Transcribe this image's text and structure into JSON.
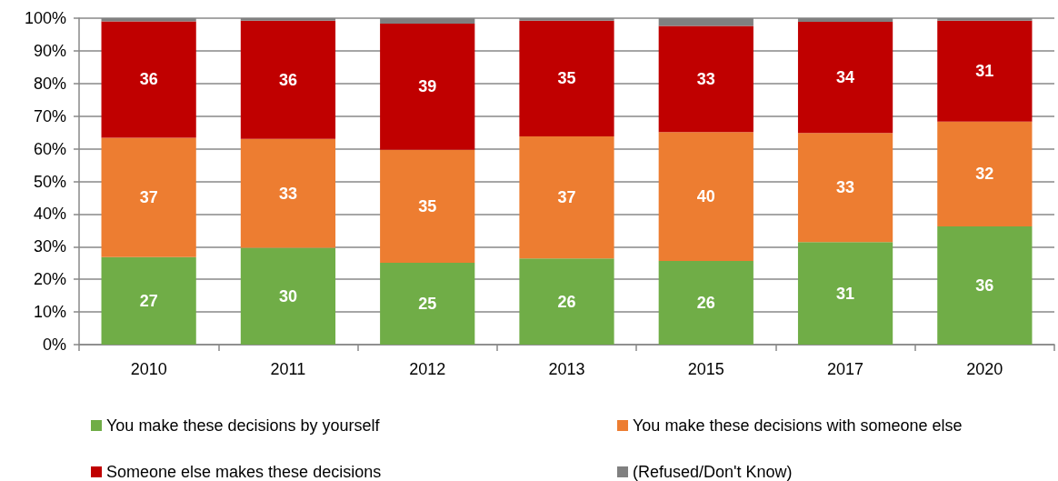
{
  "chart_data": {
    "type": "bar",
    "stacked": true,
    "categories": [
      "2010",
      "2011",
      "2012",
      "2013",
      "2015",
      "2017",
      "2020"
    ],
    "series": [
      {
        "name": "You make these decisions by yourself",
        "color": "#70ad47",
        "values": [
          26.8,
          29.7,
          25.1,
          26.4,
          25.6,
          31.4,
          36.2
        ],
        "value_labels": [
          "27",
          "30",
          "25",
          "26",
          "26",
          "31",
          "36"
        ]
      },
      {
        "name": "You make these decisions with someone else",
        "color": "#ed7d31",
        "values": [
          36.6,
          33.3,
          34.6,
          37.4,
          39.5,
          33.4,
          32.1
        ],
        "value_labels": [
          "37",
          "33",
          "35",
          "37",
          "40",
          "33",
          "32"
        ]
      },
      {
        "name": "Someone else makes these decisions",
        "color": "#c00000",
        "values": [
          35.6,
          36.2,
          38.6,
          35.4,
          32.5,
          34.1,
          30.9
        ],
        "value_labels": [
          "36",
          "36",
          "39",
          "35",
          "33",
          "34",
          "31"
        ]
      },
      {
        "name": "(Refused/Don't Know)",
        "color": "#808080",
        "values": [
          1.0,
          0.8,
          1.7,
          0.8,
          2.4,
          1.1,
          0.8
        ]
      }
    ],
    "ylim": [
      0,
      100
    ],
    "yticks": [
      {
        "value": 0,
        "label": "0%"
      },
      {
        "value": 10,
        "label": "10%"
      },
      {
        "value": 20,
        "label": "20%"
      },
      {
        "value": 30,
        "label": "30%"
      },
      {
        "value": 40,
        "label": "40%"
      },
      {
        "value": 50,
        "label": "50%"
      },
      {
        "value": 60,
        "label": "60%"
      },
      {
        "value": 70,
        "label": "70%"
      },
      {
        "value": 80,
        "label": "80%"
      },
      {
        "value": 90,
        "label": "90%"
      },
      {
        "value": 100,
        "label": "100%"
      }
    ],
    "grid": "y",
    "legend": "bottom"
  }
}
